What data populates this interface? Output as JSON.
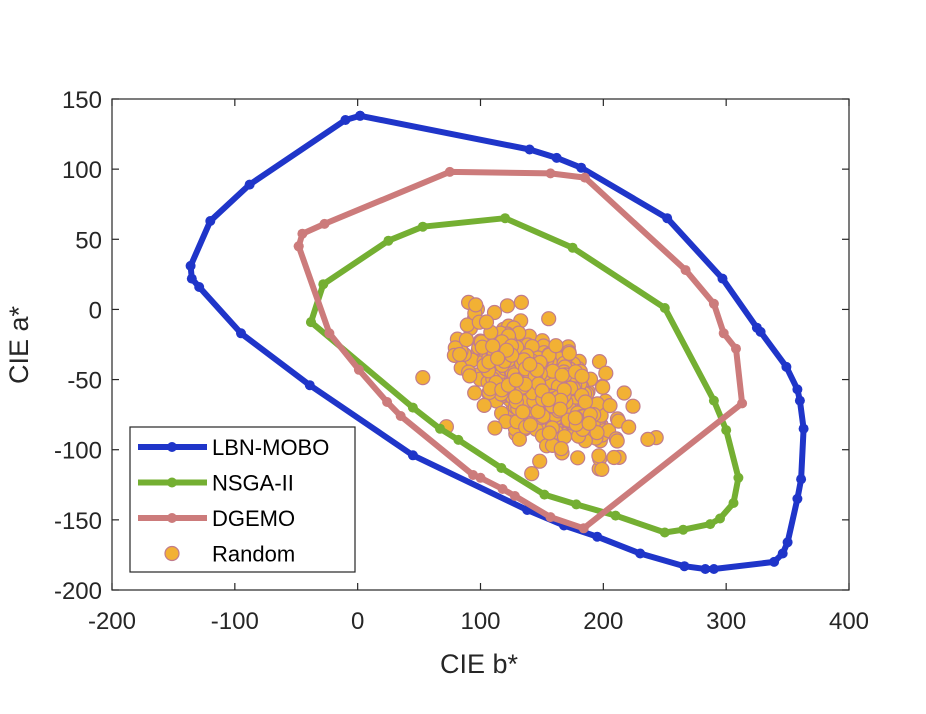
{
  "chart_data": {
    "type": "scatter",
    "xlabel": "CIE b*",
    "ylabel": "CIE a*",
    "xlim": [
      -200,
      400
    ],
    "ylim": [
      -200,
      150
    ],
    "xticks": [
      -200,
      -100,
      0,
      100,
      200,
      300,
      400
    ],
    "yticks": [
      150,
      100,
      50,
      0,
      -50,
      -100,
      -150,
      -200
    ],
    "xtick_labels": [
      "-200",
      "-100",
      "0",
      "100",
      "200",
      "300",
      "400"
    ],
    "ytick_labels": [
      "150",
      "100",
      "50",
      "0",
      "-50",
      "-100",
      "-150",
      "-200"
    ],
    "grid": false,
    "legend_position": "bottom-left",
    "series": [
      {
        "name": "LBN-MOBO",
        "kind": "closed-line",
        "color": "#1f35c9",
        "points": [
          [
            2,
            138
          ],
          [
            -10,
            135
          ],
          [
            -88,
            89
          ],
          [
            -120,
            63
          ],
          [
            -136,
            31
          ],
          [
            -135,
            22
          ],
          [
            -129,
            16
          ],
          [
            -95,
            -17
          ],
          [
            -39,
            -54
          ],
          [
            45,
            -104
          ],
          [
            138,
            -143
          ],
          [
            168,
            -154
          ],
          [
            195,
            -162
          ],
          [
            230,
            -174
          ],
          [
            266,
            -183
          ],
          [
            283,
            -185
          ],
          [
            290,
            -185
          ],
          [
            339,
            -180
          ],
          [
            346,
            -174
          ],
          [
            350,
            -166
          ],
          [
            358,
            -135
          ],
          [
            361,
            -121
          ],
          [
            363,
            -85
          ],
          [
            360,
            -65
          ],
          [
            358,
            -57
          ],
          [
            349,
            -41
          ],
          [
            328,
            -16
          ],
          [
            325,
            -13
          ],
          [
            297,
            22
          ],
          [
            252,
            65
          ],
          [
            182,
            101
          ],
          [
            162,
            108
          ],
          [
            140,
            114
          ],
          [
            2,
            138
          ]
        ]
      },
      {
        "name": "NSGA-II",
        "kind": "closed-line",
        "color": "#74af32",
        "points": [
          [
            -38,
            -9
          ],
          [
            -28,
            18
          ],
          [
            25,
            49
          ],
          [
            53,
            59
          ],
          [
            120,
            65
          ],
          [
            175,
            44
          ],
          [
            250,
            1
          ],
          [
            290,
            -65
          ],
          [
            300,
            -86
          ],
          [
            310,
            -120
          ],
          [
            306,
            -138
          ],
          [
            295,
            -149
          ],
          [
            287,
            -153
          ],
          [
            265,
            -157
          ],
          [
            250,
            -159
          ],
          [
            210,
            -147
          ],
          [
            178,
            -139
          ],
          [
            152,
            -132
          ],
          [
            117,
            -113
          ],
          [
            82,
            -93
          ],
          [
            67,
            -85
          ],
          [
            45,
            -70
          ],
          [
            -38,
            -9
          ]
        ]
      },
      {
        "name": "DGEMO",
        "kind": "closed-line",
        "color": "#cc7b7b",
        "points": [
          [
            -48,
            45
          ],
          [
            -45,
            54
          ],
          [
            -27,
            61
          ],
          [
            75,
            98
          ],
          [
            157,
            97
          ],
          [
            185,
            94
          ],
          [
            267,
            28
          ],
          [
            290,
            4
          ],
          [
            298,
            -17
          ],
          [
            308,
            -28
          ],
          [
            313,
            -67
          ],
          [
            184,
            -156
          ],
          [
            157,
            -148
          ],
          [
            128,
            -133
          ],
          [
            118,
            -128
          ],
          [
            100,
            -120
          ],
          [
            94,
            -118
          ],
          [
            35,
            -76
          ],
          [
            24,
            -66
          ],
          [
            1,
            -43
          ],
          [
            -23,
            -17
          ],
          [
            -48,
            45
          ]
        ]
      },
      {
        "name": "Random",
        "kind": "scatter",
        "color": "#f2b134",
        "edgecolor": "#c17c8c",
        "center": [
          148,
          -55
        ],
        "spread": [
          28,
          20
        ],
        "correlation": -0.55,
        "count": 650
      }
    ]
  }
}
